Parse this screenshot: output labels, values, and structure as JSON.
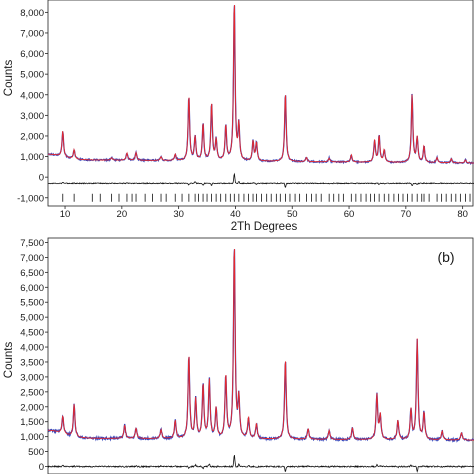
{
  "chart_data": [
    {
      "type": "line",
      "panel_label": "",
      "xlabel": "2Th Degrees",
      "ylabel": "Counts",
      "xlim": [
        7,
        82
      ],
      "ylim": [
        -1400,
        8600
      ],
      "x_ticks": [
        10,
        20,
        30,
        40,
        50,
        60,
        70,
        80
      ],
      "x_tick_labels": [
        "10",
        "20",
        "30",
        "40",
        "50",
        "60",
        "70",
        "80"
      ],
      "y_ticks": [
        -1000,
        0,
        1000,
        2000,
        3000,
        4000,
        5000,
        6000,
        7000,
        8000
      ],
      "y_tick_labels": [
        "-1,000",
        "0",
        "1,000",
        "2,000",
        "3,000",
        "4,000",
        "5,000",
        "6,000",
        "7,000",
        "8,000"
      ],
      "grid": false,
      "colors": {
        "observed": "#3344bb",
        "calculated": "#e8282b",
        "difference": "#111111",
        "reflection_ticks": "#111111"
      },
      "background": {
        "start": 850,
        "end": 680
      },
      "difference_baseline": -300,
      "reflection_row": -1000,
      "peaks": [
        {
          "x": 9.6,
          "y": 1250
        },
        {
          "x": 11.6,
          "y": 450
        },
        {
          "x": 18.2,
          "y": 120
        },
        {
          "x": 20.9,
          "y": 350
        },
        {
          "x": 22.5,
          "y": 380
        },
        {
          "x": 26.9,
          "y": 180
        },
        {
          "x": 29.4,
          "y": 300
        },
        {
          "x": 31.8,
          "y": 3150
        },
        {
          "x": 32.9,
          "y": 1150
        },
        {
          "x": 34.3,
          "y": 1800
        },
        {
          "x": 35.8,
          "y": 2800
        },
        {
          "x": 36.6,
          "y": 1000
        },
        {
          "x": 38.3,
          "y": 1700
        },
        {
          "x": 39.8,
          "y": 7800
        },
        {
          "x": 40.6,
          "y": 1700
        },
        {
          "x": 43.1,
          "y": 950
        },
        {
          "x": 43.7,
          "y": 900
        },
        {
          "x": 48.8,
          "y": 3350
        },
        {
          "x": 52.5,
          "y": 200
        },
        {
          "x": 56.5,
          "y": 180
        },
        {
          "x": 60.4,
          "y": 350
        },
        {
          "x": 64.5,
          "y": 1050
        },
        {
          "x": 65.3,
          "y": 1300
        },
        {
          "x": 66.2,
          "y": 600
        },
        {
          "x": 71.1,
          "y": 3300
        },
        {
          "x": 72.0,
          "y": 1200
        },
        {
          "x": 73.2,
          "y": 800
        },
        {
          "x": 75.5,
          "y": 250
        },
        {
          "x": 78.0,
          "y": 200
        },
        {
          "x": 80.5,
          "y": 150
        }
      ],
      "reflections": [
        9.6,
        11.6,
        14.8,
        16.2,
        18.2,
        19.5,
        20.9,
        21.8,
        22.5,
        24.1,
        25.4,
        26.9,
        27.8,
        29.4,
        30.6,
        31.8,
        32.9,
        33.5,
        34.3,
        35.0,
        35.8,
        36.6,
        37.4,
        38.3,
        39.1,
        39.8,
        40.6,
        41.5,
        42.3,
        43.1,
        43.7,
        44.6,
        45.5,
        46.3,
        47.2,
        47.9,
        48.8,
        49.6,
        50.5,
        51.3,
        52.5,
        53.4,
        54.2,
        55.1,
        56.5,
        57.3,
        58.2,
        59.0,
        60.4,
        61.2,
        62.1,
        63.0,
        63.8,
        64.5,
        65.3,
        66.2,
        67.0,
        67.9,
        68.7,
        69.5,
        70.3,
        71.1,
        72.0,
        72.8,
        73.2,
        74.1,
        75.5,
        76.3,
        77.1,
        78.0,
        78.8,
        79.6,
        80.5,
        81.3
      ]
    },
    {
      "type": "line",
      "panel_label": "(b)",
      "xlabel": "",
      "ylabel": "Counts",
      "xlim": [
        7,
        82
      ],
      "ylim": [
        -250,
        7650
      ],
      "x_ticks": [],
      "x_tick_labels": [],
      "y_ticks": [
        0,
        500,
        1000,
        1500,
        2000,
        2500,
        3000,
        3500,
        4000,
        4500,
        5000,
        5500,
        6000,
        6500,
        7000,
        7500
      ],
      "y_tick_labels": [
        "0",
        "500",
        "1,000",
        "1,500",
        "2,000",
        "2,500",
        "3,000",
        "3,500",
        "4,000",
        "4,500",
        "5,000",
        "5,500",
        "6,000",
        "6,500",
        "7,000",
        "7,500"
      ],
      "grid": false,
      "colors": {
        "observed": "#3344bb",
        "calculated": "#e8282b",
        "difference": "#111111"
      },
      "background": {
        "start": 950,
        "end": 880
      },
      "difference_baseline": 0,
      "peaks": [
        {
          "x": 9.6,
          "y": 600
        },
        {
          "x": 11.6,
          "y": 1100
        },
        {
          "x": 20.5,
          "y": 450
        },
        {
          "x": 22.5,
          "y": 350
        },
        {
          "x": 26.9,
          "y": 300
        },
        {
          "x": 29.4,
          "y": 600
        },
        {
          "x": 31.8,
          "y": 2800
        },
        {
          "x": 33.0,
          "y": 1300
        },
        {
          "x": 34.3,
          "y": 1800
        },
        {
          "x": 35.4,
          "y": 1950
        },
        {
          "x": 36.6,
          "y": 1000
        },
        {
          "x": 38.3,
          "y": 2100
        },
        {
          "x": 39.8,
          "y": 6500
        },
        {
          "x": 40.6,
          "y": 1300
        },
        {
          "x": 42.3,
          "y": 700
        },
        {
          "x": 43.7,
          "y": 500
        },
        {
          "x": 48.8,
          "y": 2700
        },
        {
          "x": 52.8,
          "y": 350
        },
        {
          "x": 56.5,
          "y": 300
        },
        {
          "x": 60.6,
          "y": 400
        },
        {
          "x": 64.9,
          "y": 1500
        },
        {
          "x": 65.5,
          "y": 800
        },
        {
          "x": 68.6,
          "y": 650
        },
        {
          "x": 70.9,
          "y": 1000
        },
        {
          "x": 72.0,
          "y": 3350
        },
        {
          "x": 73.2,
          "y": 900
        },
        {
          "x": 76.4,
          "y": 300
        },
        {
          "x": 79.8,
          "y": 250
        }
      ]
    }
  ]
}
